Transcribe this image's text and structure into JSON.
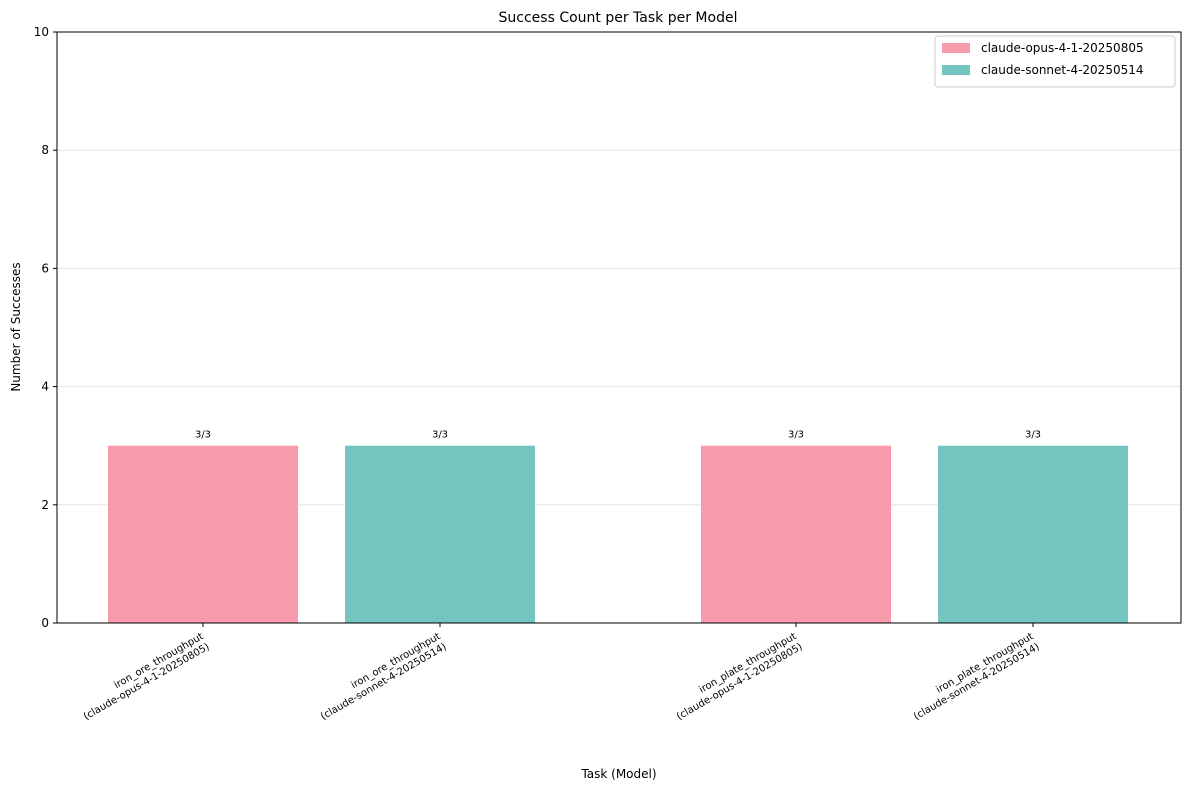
{
  "chart_data": {
    "type": "bar",
    "title": "Success Count per Task per Model",
    "xlabel": "Task (Model)",
    "ylabel": "Number of Successes",
    "ylim": [
      0,
      10
    ],
    "yticks": [
      0,
      2,
      4,
      6,
      8,
      10
    ],
    "grid": true,
    "legend_position": "top-right",
    "series": [
      {
        "name": "claude-opus-4-1-20250805",
        "color": "#f79aac"
      },
      {
        "name": "claude-sonnet-4-20250514",
        "color": "#74c4bf"
      }
    ],
    "bars": [
      {
        "label_line1": "iron_ore_throughput",
        "label_line2": "(claude-opus-4-1-20250805)",
        "series": 0,
        "value": 3,
        "data_label": "3/3"
      },
      {
        "label_line1": "iron_ore_throughput",
        "label_line2": "(claude-sonnet-4-20250514)",
        "series": 1,
        "value": 3,
        "data_label": "3/3"
      },
      {
        "label_line1": "iron_plate_throughput",
        "label_line2": "(claude-opus-4-1-20250805)",
        "series": 0,
        "value": 3,
        "data_label": "3/3"
      },
      {
        "label_line1": "iron_plate_throughput",
        "label_line2": "(claude-sonnet-4-20250514)",
        "series": 1,
        "value": 3,
        "data_label": "3/3"
      }
    ]
  }
}
